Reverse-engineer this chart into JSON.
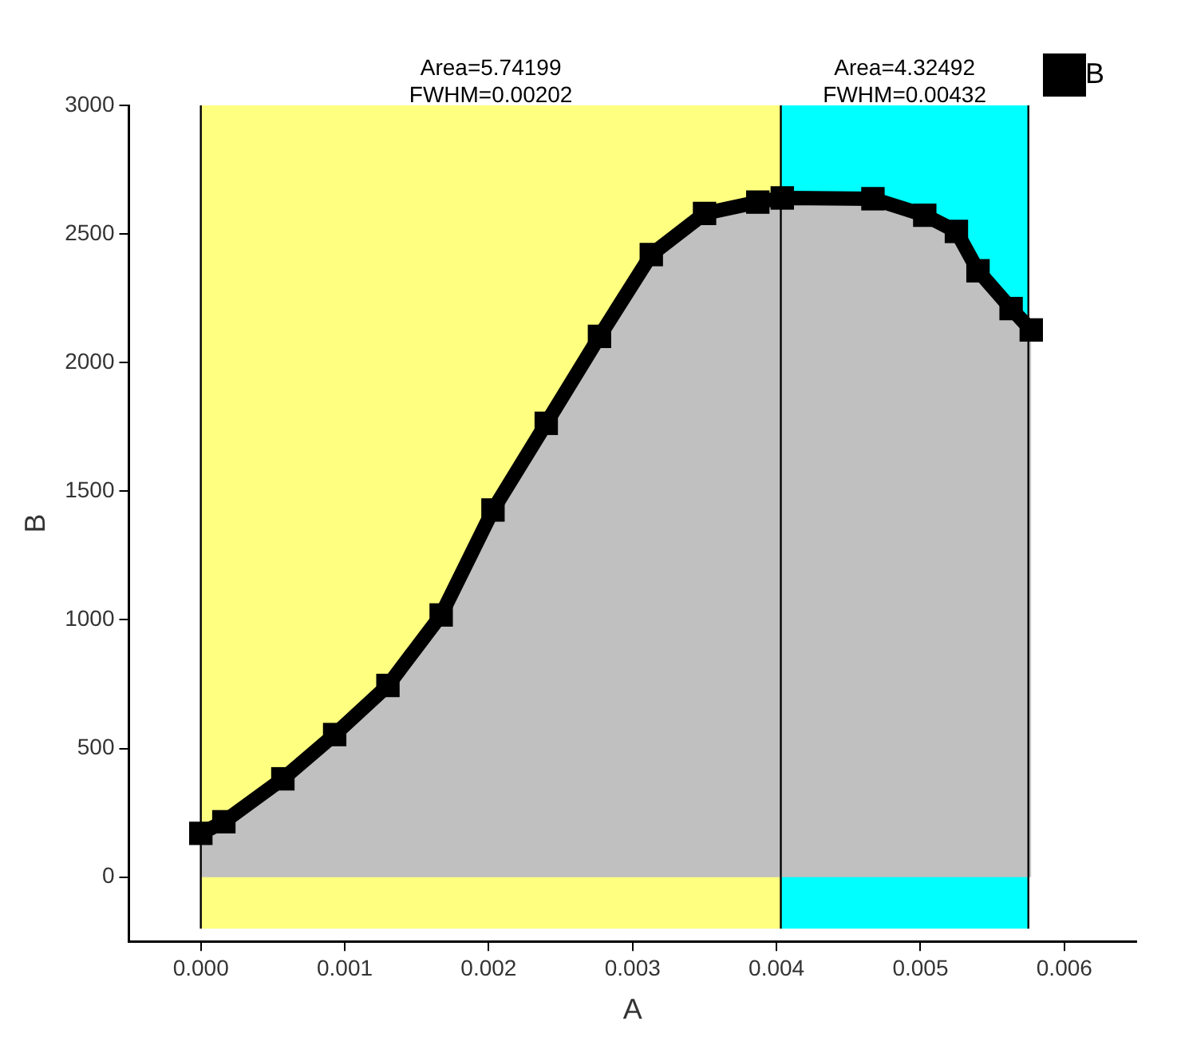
{
  "chart_data": {
    "type": "area",
    "xlabel": "A",
    "ylabel": "B",
    "x": [
      0,
      0.00016,
      0.00057,
      0.00093,
      0.0013,
      0.00167,
      0.00203,
      0.0024,
      0.00277,
      0.00313,
      0.0035,
      0.00387,
      0.00404,
      0.00467,
      0.00503,
      0.00525,
      0.0054,
      0.00563,
      0.00577
    ],
    "series": [
      {
        "name": "B",
        "color": "#000000",
        "values": [
          170,
          215,
          382,
          554,
          745,
          1019,
          1427,
          1764,
          2102,
          2420,
          2580,
          2624,
          2640,
          2637,
          2573,
          2510,
          2357,
          2210,
          2127
        ]
      }
    ],
    "xlim": [
      -0.0005,
      0.0065
    ],
    "xticks": [
      {
        "value": 0,
        "label": "0.000"
      },
      {
        "value": 0.001,
        "label": "0.001"
      },
      {
        "value": 0.002,
        "label": "0.002"
      },
      {
        "value": 0.003,
        "label": "0.003"
      },
      {
        "value": 0.004,
        "label": "0.004"
      },
      {
        "value": 0.005,
        "label": "0.005"
      },
      {
        "value": 0.006,
        "label": "0.006"
      }
    ],
    "ylim": [
      -250,
      3000
    ],
    "yticks": [
      0,
      500,
      1000,
      1500,
      2000,
      2500,
      3000
    ],
    "bands": [
      {
        "axis": "x",
        "from": 0,
        "to": 0.00403,
        "label": "Area=5.74199\nFWHM=0.00202",
        "color": "#ffff80"
      },
      {
        "axis": "x",
        "from": 0.00403,
        "to": 0.00575,
        "label": "Area=4.32492\nFWHM=0.00432",
        "color": "#00ffff"
      }
    ],
    "ref_lines": [
      {
        "axis": "x",
        "value": 0,
        "color": "#000000"
      },
      {
        "axis": "x",
        "value": 0.00403,
        "color": "#000000"
      },
      {
        "axis": "x",
        "value": 0.00575,
        "color": "#000000"
      }
    ],
    "marker": "square",
    "grid": false,
    "legend": "top right"
  }
}
